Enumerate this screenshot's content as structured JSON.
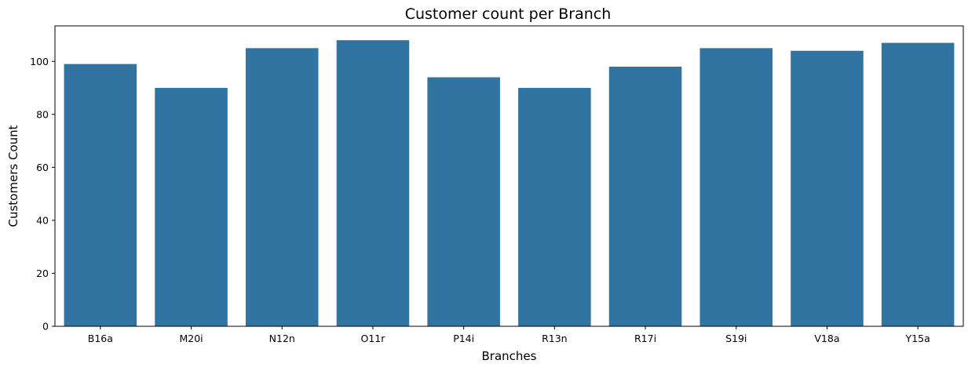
{
  "chart_data": {
    "type": "bar",
    "title": "Customer count per Branch",
    "xlabel": "Branches",
    "ylabel": "Customers Count",
    "categories": [
      "B16a",
      "M20i",
      "N12n",
      "O11r",
      "P14i",
      "R13n",
      "R17i",
      "S19i",
      "V18a",
      "Y15a"
    ],
    "values": [
      99,
      90,
      105,
      108,
      94,
      90,
      98,
      105,
      104,
      107
    ],
    "ylim": [
      0,
      113.4
    ],
    "yticks": [
      0,
      20,
      40,
      60,
      80,
      100
    ],
    "grid": false,
    "legend": false,
    "bar_color": "#3274a1"
  }
}
